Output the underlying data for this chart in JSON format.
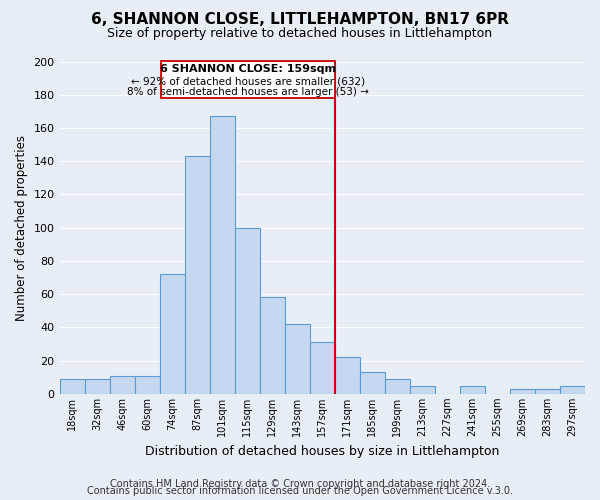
{
  "title": "6, SHANNON CLOSE, LITTLEHAMPTON, BN17 6PR",
  "subtitle": "Size of property relative to detached houses in Littlehampton",
  "xlabel": "Distribution of detached houses by size in Littlehampton",
  "ylabel": "Number of detached properties",
  "footer_line1": "Contains HM Land Registry data © Crown copyright and database right 2024.",
  "footer_line2": "Contains public sector information licensed under the Open Government Licence v.3.0.",
  "bin_labels": [
    "18sqm",
    "32sqm",
    "46sqm",
    "60sqm",
    "74sqm",
    "87sqm",
    "101sqm",
    "115sqm",
    "129sqm",
    "143sqm",
    "157sqm",
    "171sqm",
    "185sqm",
    "199sqm",
    "213sqm",
    "227sqm",
    "241sqm",
    "255sqm",
    "269sqm",
    "283sqm",
    "297sqm"
  ],
  "bar_heights": [
    9,
    9,
    11,
    11,
    72,
    143,
    167,
    100,
    58,
    42,
    31,
    22,
    13,
    9,
    5,
    0,
    5,
    0,
    3,
    3,
    5
  ],
  "bar_color": "#c5d8f0",
  "bar_edge_color": "#5b9bd5",
  "background_color": "#e8eef6",
  "grid_color": "#ffffff",
  "property_label": "6 SHANNON CLOSE: 159sqm",
  "annotation_line1": "← 92% of detached houses are smaller (632)",
  "annotation_line2": "8% of semi-detached houses are larger (53) →",
  "red_line_bin_index": 10,
  "ylim": [
    0,
    200
  ],
  "yticks": [
    0,
    20,
    40,
    60,
    80,
    100,
    120,
    140,
    160,
    180,
    200
  ],
  "annotation_box_color": "#ffffff",
  "annotation_border_color": "#cc0000",
  "red_line_color": "#cc0000",
  "title_fontsize": 11,
  "subtitle_fontsize": 9,
  "annotation_fontsize": 8,
  "footer_fontsize": 7
}
